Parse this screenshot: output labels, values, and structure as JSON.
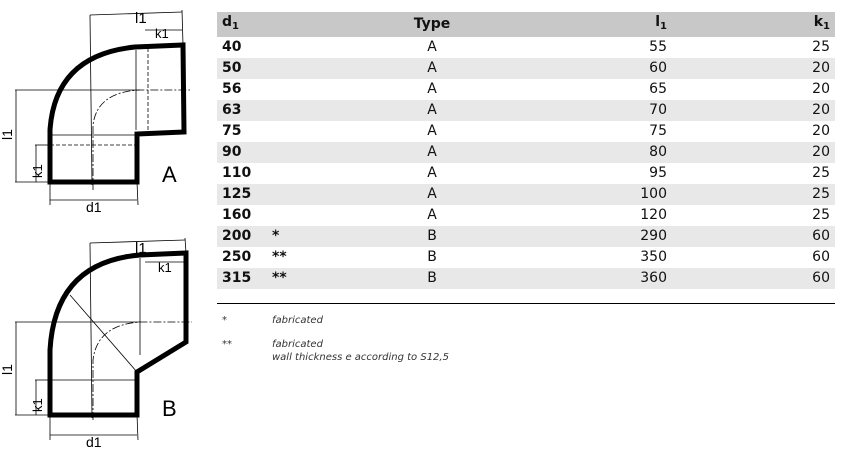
{
  "drawings": [
    {
      "label": "A",
      "dims": [
        "l1",
        "k1",
        "l1",
        "k1",
        "d1"
      ]
    },
    {
      "label": "B",
      "dims": [
        "l1",
        "k1",
        "l1",
        "k1",
        "d1"
      ]
    }
  ],
  "table": {
    "headers": {
      "d": "d",
      "type": "Type",
      "l": "l",
      "k": "k",
      "sub": "1"
    },
    "rows": [
      {
        "d1": "40",
        "mark": "",
        "type": "A",
        "l1": "55",
        "k1": "25"
      },
      {
        "d1": "50",
        "mark": "",
        "type": "A",
        "l1": "60",
        "k1": "20"
      },
      {
        "d1": "56",
        "mark": "",
        "type": "A",
        "l1": "65",
        "k1": "20"
      },
      {
        "d1": "63",
        "mark": "",
        "type": "A",
        "l1": "70",
        "k1": "20"
      },
      {
        "d1": "75",
        "mark": "",
        "type": "A",
        "l1": "75",
        "k1": "20"
      },
      {
        "d1": "90",
        "mark": "",
        "type": "A",
        "l1": "80",
        "k1": "20"
      },
      {
        "d1": "110",
        "mark": "",
        "type": "A",
        "l1": "95",
        "k1": "25"
      },
      {
        "d1": "125",
        "mark": "",
        "type": "A",
        "l1": "100",
        "k1": "25"
      },
      {
        "d1": "160",
        "mark": "",
        "type": "A",
        "l1": "120",
        "k1": "25"
      },
      {
        "d1": "200",
        "mark": "*",
        "type": "B",
        "l1": "290",
        "k1": "60"
      },
      {
        "d1": "250",
        "mark": "**",
        "type": "B",
        "l1": "350",
        "k1": "60"
      },
      {
        "d1": "315",
        "mark": "**",
        "type": "B",
        "l1": "360",
        "k1": "60"
      }
    ]
  },
  "footnotes": [
    {
      "mark": "*",
      "lines": [
        "fabricated"
      ]
    },
    {
      "mark": "**",
      "lines": [
        "fabricated",
        "wall thickness e according to S12,5"
      ]
    }
  ]
}
